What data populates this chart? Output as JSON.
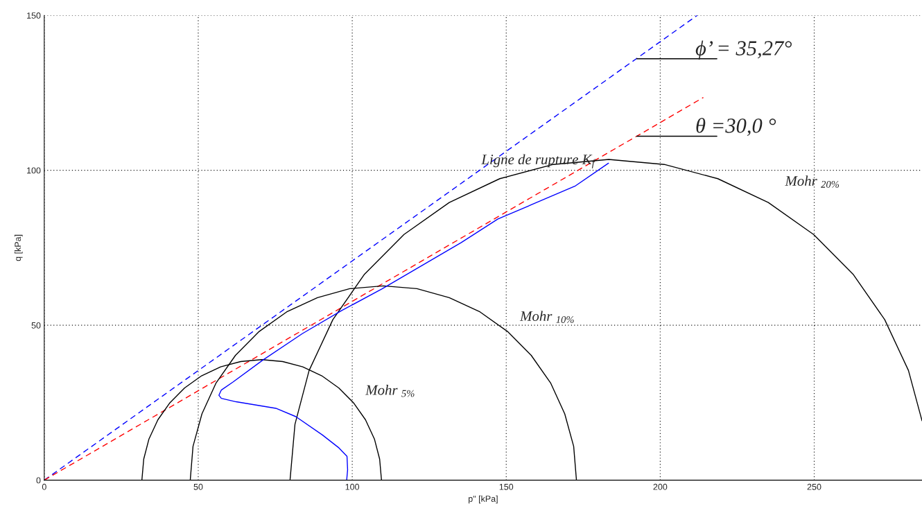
{
  "chart_data": {
    "type": "line",
    "xlabel": "p\" [kPa]",
    "ylabel": "q [kPa]",
    "xlim": [
      0,
      285
    ],
    "ylim": [
      0,
      150
    ],
    "xticks": [
      0,
      50,
      100,
      150,
      200,
      250
    ],
    "yticks": [
      0,
      50,
      100,
      150
    ],
    "grid": true,
    "line_style": "solid",
    "marker": "none",
    "series": [
      {
        "color": "#0000ff",
        "line_style": "dashed",
        "x": [
          0,
          212
        ],
        "values": [
          0,
          150
        ]
      },
      {
        "color": "#ff0000",
        "line_style": "dashed",
        "x": [
          0,
          214
        ],
        "values": [
          0,
          123.5
        ]
      },
      {
        "color": "#000000",
        "x": [
          31.7,
          32.3,
          34.0,
          36.9,
          40.8,
          45.6,
          51.1,
          57.3,
          63.8,
          70.6,
          77.4,
          83.9,
          90.1,
          95.6,
          100.4,
          104.3,
          107.2,
          108.9,
          109.5
        ],
        "values": [
          0,
          6.8,
          13.3,
          19.5,
          25.0,
          29.8,
          33.7,
          36.6,
          38.3,
          38.9,
          38.3,
          36.6,
          33.7,
          29.8,
          25.0,
          19.5,
          13.3,
          6.8,
          0
        ]
      },
      {
        "color": "#000000",
        "x": [
          47.4,
          48.3,
          51.2,
          55.8,
          62.1,
          69.8,
          78.7,
          88.7,
          99.2,
          110.1,
          121.0,
          131.5,
          141.5,
          150.4,
          158.1,
          164.4,
          169.0,
          171.9,
          172.8
        ],
        "values": [
          0,
          10.9,
          21.4,
          31.4,
          40.3,
          48.0,
          54.3,
          58.9,
          61.8,
          62.7,
          61.8,
          58.9,
          54.3,
          48.0,
          40.3,
          31.4,
          21.4,
          10.9,
          0
        ]
      },
      {
        "color": "#000000",
        "x": [
          79.8,
          81.4,
          86.0,
          93.7,
          104.0,
          116.8,
          131.5,
          147.9,
          165.3,
          183.3,
          201.3,
          218.7,
          235.1,
          249.8,
          262.6,
          272.9,
          280.6,
          285
        ],
        "values": [
          0,
          18.0,
          35.4,
          51.8,
          66.5,
          79.3,
          89.6,
          97.3,
          101.9,
          103.5,
          101.9,
          97.3,
          89.6,
          79.3,
          66.5,
          51.8,
          35.4,
          19.2
        ]
      },
      {
        "color": "#0000ff",
        "x": [
          98.2,
          98.5,
          98.3,
          95.7,
          90.3,
          81.7,
          75.2,
          62.3,
          57.5,
          56.7,
          57.5,
          61.3,
          70.9,
          83.8,
          96.7,
          109.6,
          135.4,
          147.3,
          158.9,
          172.5,
          183.2
        ],
        "values": [
          0,
          3.4,
          7.7,
          10.4,
          14.6,
          20.5,
          23.2,
          25.3,
          26.4,
          27.4,
          29.1,
          31.7,
          38.7,
          47.3,
          54.8,
          61.7,
          76.7,
          84.3,
          89.2,
          95.0,
          102.3
        ]
      }
    ],
    "annotations": [
      {
        "text": "ϕ’ = 35,27°",
        "x": 192.4,
        "y": 136
      },
      {
        "text": "θ =30,0 °",
        "x": 192.4,
        "y": 111
      },
      "Ligne de rupture K$_{f}$",
      "Mohr $_{20%}$",
      "Mohr $_{10%}$",
      "Mohr $_{5%}$"
    ]
  }
}
